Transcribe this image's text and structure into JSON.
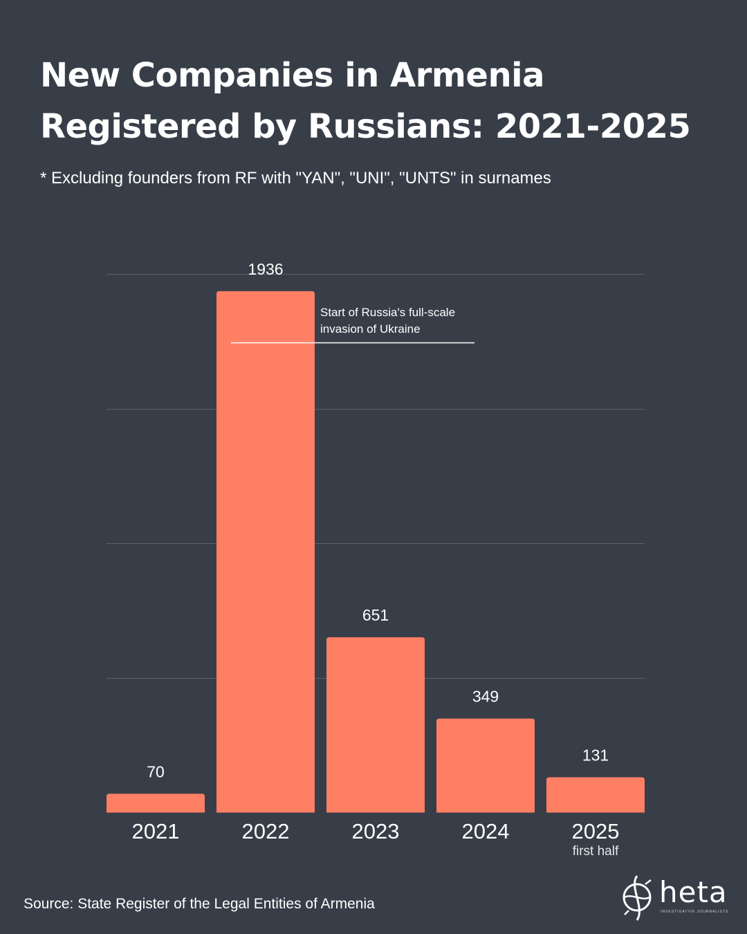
{
  "title_line1": "New Companies in Armenia",
  "title_line2": "Registered by Russians: 2021-2025",
  "subtitle": "* Excluding founders from RF with \"YAN\", \"UNI\", \"UNTS\" in surnames",
  "source": "Source: State Register of the Legal Entities of Armenia",
  "logo": {
    "name": "heta",
    "tagline": "INVESTIGATIVE JOURNALISTS",
    "icon": "globe-logo-icon"
  },
  "colors": {
    "background": "#383e48",
    "bar": "#ff7f65",
    "text": "#ffffff",
    "grid": "#5a616b"
  },
  "chart_data": {
    "type": "bar",
    "categories": [
      "2021",
      "2022",
      "2023",
      "2024",
      "2025"
    ],
    "category_notes": [
      "",
      "",
      "",
      "",
      "first half"
    ],
    "values": [
      70,
      1936,
      651,
      349,
      131
    ],
    "data_labels": [
      "70",
      "1936",
      "651",
      "349",
      "131"
    ],
    "ylim": [
      0,
      2000
    ],
    "grid": true,
    "xlabel": "",
    "ylabel": "",
    "annotation": {
      "text_line1": "Start of Russia's full-scale",
      "text_line2": "invasion of Ukraine",
      "category": "2022"
    }
  }
}
